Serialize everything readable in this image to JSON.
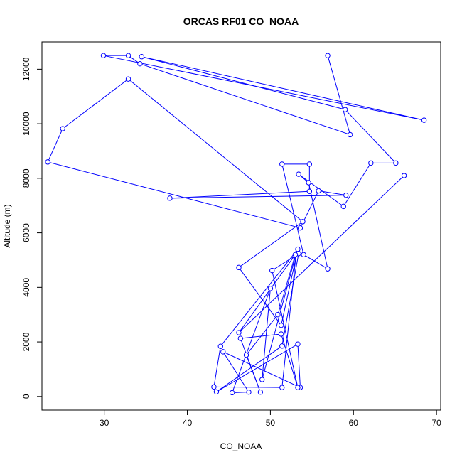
{
  "chart_data": {
    "type": "line",
    "title": "ORCAS RF01 CO_NOAA",
    "xlabel": "CO_NOAA",
    "ylabel": "Altitude (m)",
    "xlim": [
      22.5,
      70.5
    ],
    "ylim": [
      -500,
      13000
    ],
    "x_ticks": [
      30,
      40,
      50,
      60,
      70
    ],
    "y_ticks": [
      0,
      2000,
      4000,
      6000,
      8000,
      10000,
      12000
    ],
    "grid": false,
    "line_color": "#0000ff",
    "series": [
      {
        "marker": "open-circle",
        "points": [
          [
            56.9,
            12500
          ],
          [
            59.6,
            9600
          ],
          [
            34.3,
            12200
          ],
          [
            32.9,
            12500
          ],
          [
            29.9,
            12500
          ],
          [
            68.5,
            10130
          ],
          [
            34.5,
            12460
          ],
          [
            59.0,
            10520
          ],
          [
            65.1,
            8560
          ],
          [
            62.1,
            8560
          ],
          [
            58.8,
            6970
          ],
          [
            53.4,
            8150
          ],
          [
            54.6,
            7840
          ],
          [
            56.9,
            4680
          ],
          [
            54.0,
            5200
          ],
          [
            51.4,
            8520
          ],
          [
            54.7,
            8520
          ],
          [
            54.7,
            7520
          ],
          [
            37.9,
            7270
          ],
          [
            59.1,
            7380
          ],
          [
            55.8,
            7540
          ],
          [
            53.6,
            6180
          ],
          [
            23.2,
            8600
          ],
          [
            25.0,
            9820
          ],
          [
            32.9,
            11640
          ],
          [
            53.9,
            6410
          ],
          [
            46.2,
            4730
          ],
          [
            51.3,
            2610
          ],
          [
            53.3,
            5400
          ],
          [
            44.0,
            1840
          ],
          [
            43.2,
            350
          ],
          [
            51.4,
            330
          ],
          [
            53.1,
            5230
          ],
          [
            49.0,
            620
          ],
          [
            50.0,
            3960
          ],
          [
            45.4,
            140
          ],
          [
            47.4,
            160
          ],
          [
            44.3,
            1640
          ],
          [
            53.6,
            330
          ],
          [
            53.3,
            1920
          ],
          [
            43.5,
            170
          ],
          [
            51.4,
            1850
          ],
          [
            53.4,
            5240
          ],
          [
            50.2,
            4620
          ],
          [
            53.3,
            330
          ],
          [
            51.3,
            2290
          ],
          [
            46.4,
            2130
          ],
          [
            48.8,
            160
          ],
          [
            47.1,
            1520
          ],
          [
            50.9,
            3000
          ],
          [
            53.0,
            5200
          ],
          [
            46.2,
            2340
          ],
          [
            66.1,
            8100
          ]
        ]
      }
    ]
  }
}
